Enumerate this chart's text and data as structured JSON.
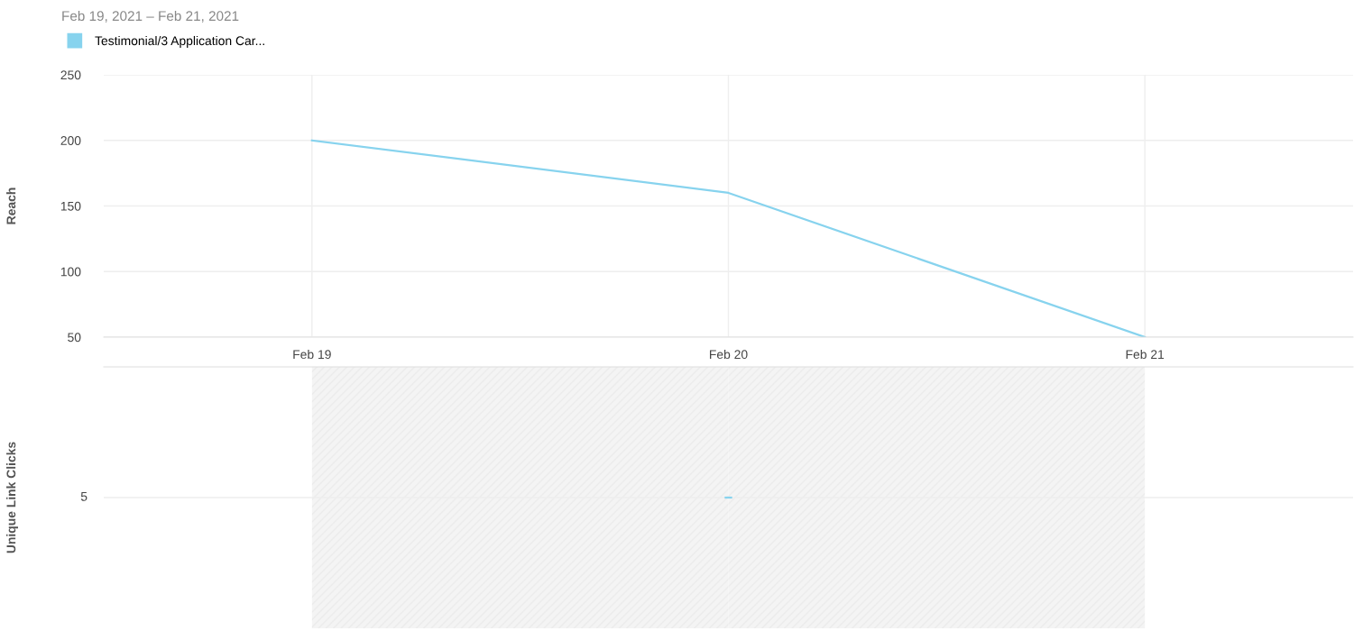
{
  "chart_data": [
    {
      "type": "line",
      "title": "Feb 19, 2021 – Feb 21, 2021",
      "ylabel": "Reach",
      "categories": [
        "Feb 19",
        "Feb 20",
        "Feb 21"
      ],
      "series": [
        {
          "name": "Testimonial/3 Application Car...",
          "color": "#87d3ee",
          "values": [
            200,
            160,
            50
          ]
        }
      ],
      "ylim": [
        50,
        250
      ],
      "yticks": [
        50,
        100,
        150,
        200,
        250
      ],
      "grid": true,
      "legend": "top left"
    },
    {
      "type": "other",
      "ylabel": "Unique Link Clicks",
      "annotations": [
        "5"
      ]
    }
  ]
}
